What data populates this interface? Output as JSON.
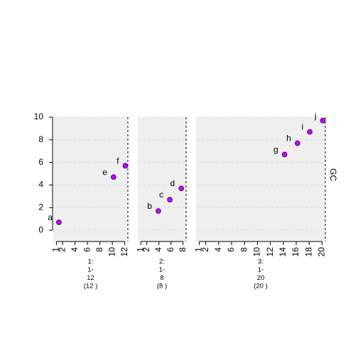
{
  "chart_data": {
    "type": "scatter",
    "ylabel": "GC",
    "ylim": [
      -1,
      10
    ],
    "y_ticks": [
      0,
      2,
      4,
      6,
      8,
      10
    ],
    "grid": true,
    "colors": {
      "panel_bg": "#efefef",
      "grid": "#dedede",
      "point_fill": "#cc00ff",
      "point_stroke": "#3a0060",
      "divider": "#000000"
    },
    "panels": [
      {
        "label_lines": [
          "1:",
          "1-",
          "12",
          "(12 )"
        ],
        "xlim": [
          0.5,
          12.5
        ],
        "x_ticks": [
          "1",
          "2",
          "4",
          "6",
          "8",
          "10",
          "12"
        ],
        "x_tick_values": [
          1,
          2,
          4,
          6,
          8,
          10,
          12
        ],
        "points": [
          {
            "label": "a",
            "x": 1.4,
            "y": 0.7
          },
          {
            "label": "e",
            "x": 10.2,
            "y": 4.7
          },
          {
            "label": "f",
            "x": 12.1,
            "y": 5.7
          }
        ]
      },
      {
        "label_lines": [
          "2:",
          "1-",
          "8",
          "(8 )"
        ],
        "xlim": [
          0.5,
          8.5
        ],
        "x_ticks": [
          "1",
          "2",
          "4",
          "6",
          "8"
        ],
        "x_tick_values": [
          1,
          2,
          4,
          6,
          8
        ],
        "points": [
          {
            "label": "b",
            "x": 3.9,
            "y": 1.7
          },
          {
            "label": "c",
            "x": 5.8,
            "y": 2.7
          },
          {
            "label": "d",
            "x": 7.7,
            "y": 3.7
          }
        ]
      },
      {
        "label_lines": [
          "3:",
          "1-",
          "20",
          "(20 )"
        ],
        "xlim": [
          0.5,
          20.5
        ],
        "x_ticks": [
          "1",
          "2",
          "4",
          "6",
          "8",
          "10",
          "12",
          "14",
          "16",
          "18",
          "20"
        ],
        "x_tick_values": [
          1,
          2,
          4,
          6,
          8,
          10,
          12,
          14,
          16,
          18,
          20
        ],
        "points": [
          {
            "label": "g",
            "x": 14.2,
            "y": 6.7
          },
          {
            "label": "h",
            "x": 16.2,
            "y": 7.7
          },
          {
            "label": "i",
            "x": 18.1,
            "y": 8.7
          },
          {
            "label": "j",
            "x": 20.1,
            "y": 9.7
          }
        ]
      }
    ]
  }
}
